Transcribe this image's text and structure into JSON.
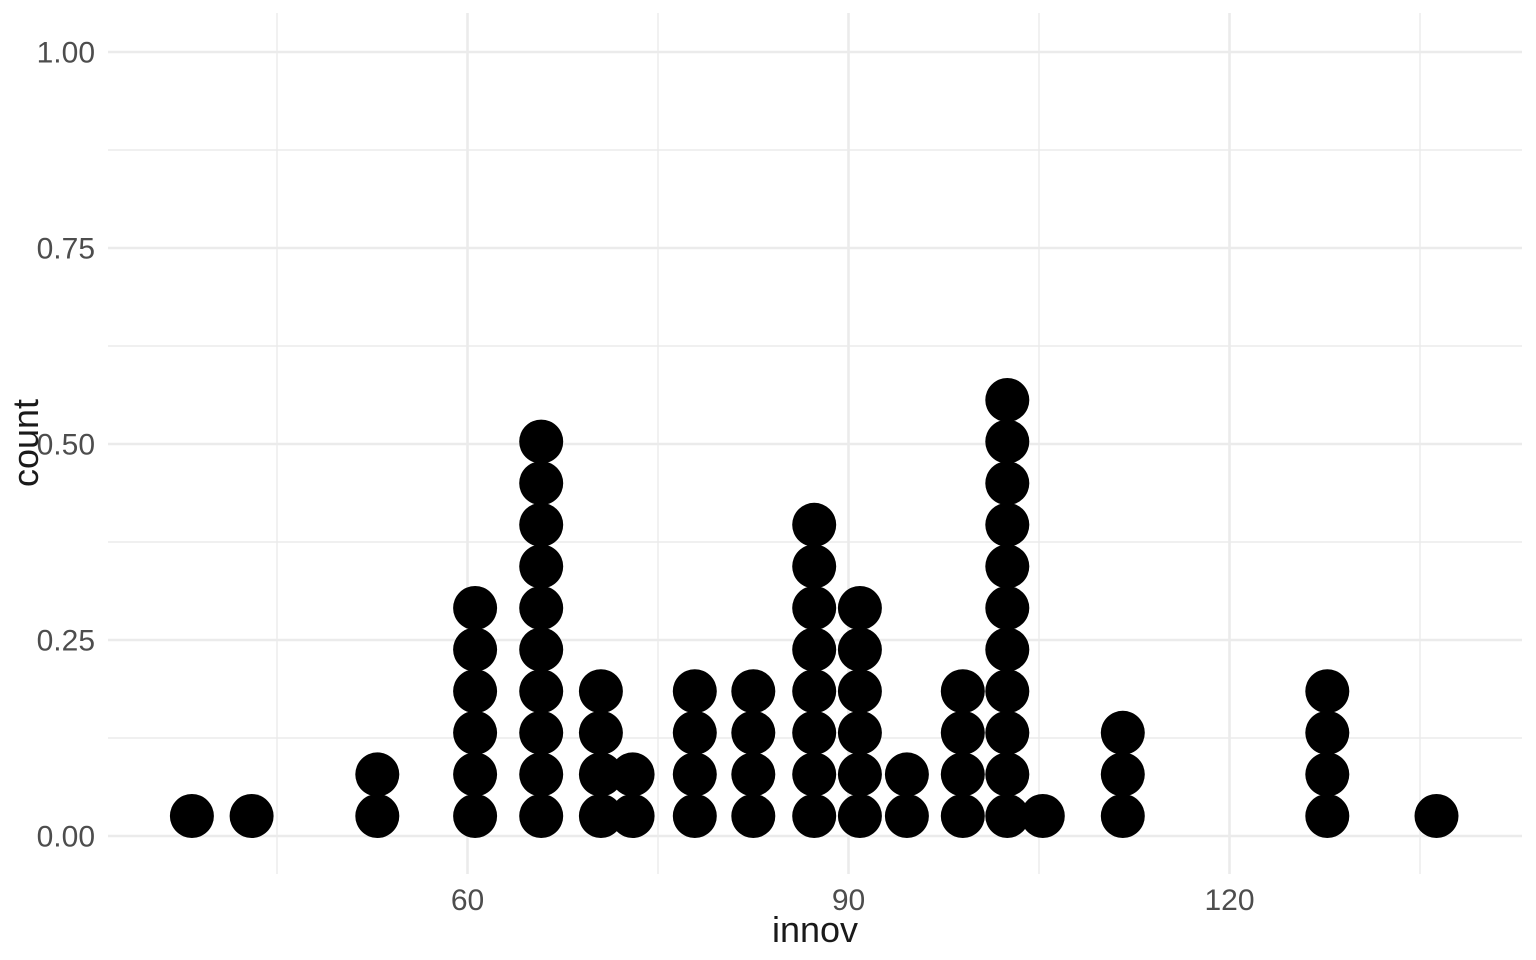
{
  "chart_data": {
    "type": "dotplot",
    "title": "",
    "xlabel": "innov",
    "ylabel": "count",
    "legend": "none",
    "grid": "major+minor",
    "background": "#ffffff",
    "dot_color": "#000000",
    "grid_color": "#ebebeb",
    "tick_label_color": "#4d4d4d",
    "axis_title_color": "#1a1a1a",
    "x_axis": {
      "major_ticks": [
        60,
        90,
        120
      ],
      "tick_labels": [
        "60",
        "90",
        "120"
      ],
      "minor_ticks": [
        45,
        75,
        105,
        135
      ],
      "range": [
        31.7,
        143.0
      ]
    },
    "y_axis": {
      "major_ticks": [
        0,
        0.25,
        0.5,
        0.75,
        1
      ],
      "tick_labels": [
        "0.00",
        "0.25",
        "0.50",
        "0.75",
        "1.00"
      ],
      "minor_ticks": [
        0.125,
        0.375,
        0.625,
        0.875
      ],
      "range": [
        -0.05,
        1.05
      ]
    },
    "total_dots": 74,
    "stacks": [
      {
        "innov": 38.3,
        "count": 1
      },
      {
        "innov": 43.0,
        "count": 1
      },
      {
        "innov": 52.9,
        "count": 2
      },
      {
        "innov": 60.6,
        "count": 6
      },
      {
        "innov": 65.8,
        "count": 10
      },
      {
        "innov": 70.5,
        "count": 4
      },
      {
        "innov": 73.0,
        "count": 2
      },
      {
        "innov": 77.9,
        "count": 4
      },
      {
        "innov": 82.5,
        "count": 4
      },
      {
        "innov": 87.3,
        "count": 8
      },
      {
        "innov": 90.9,
        "count": 6
      },
      {
        "innov": 94.6,
        "count": 2
      },
      {
        "innov": 99.0,
        "count": 4
      },
      {
        "innov": 102.5,
        "count": 11
      },
      {
        "innov": 105.3,
        "count": 1
      },
      {
        "innov": 111.6,
        "count": 3
      },
      {
        "innov": 127.7,
        "count": 4
      },
      {
        "innov": 136.3,
        "count": 1
      }
    ]
  }
}
